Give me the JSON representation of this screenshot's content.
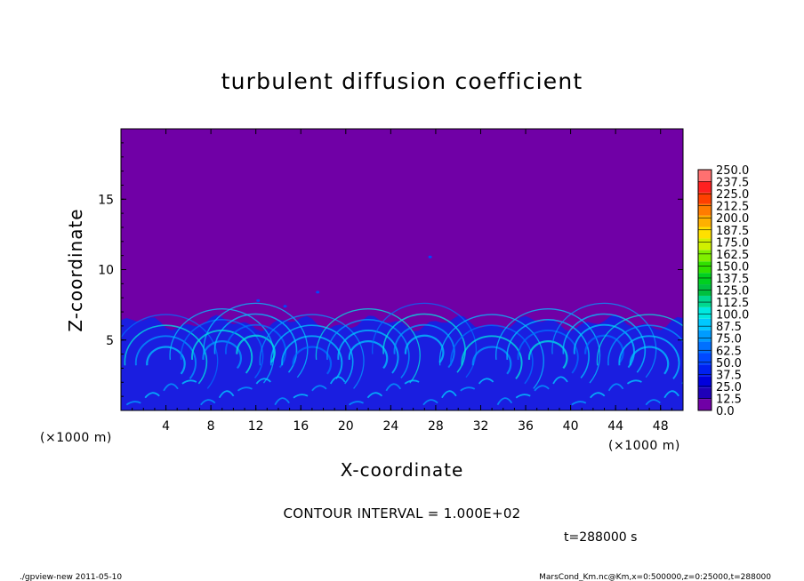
{
  "chart_data": {
    "type": "heatmap",
    "title": "turbulent diffusion coefficient",
    "xlabel": "X-coordinate",
    "ylabel": "Z-coordinate",
    "x_unit": "(×1000 m)",
    "y_unit": "(×1000 m)",
    "xlim": [
      0,
      50
    ],
    "ylim": [
      0,
      20
    ],
    "x_ticks": [
      4,
      8,
      12,
      16,
      20,
      24,
      28,
      32,
      36,
      40,
      44,
      48
    ],
    "x_tick_labels": [
      "4",
      "8",
      "12",
      "16",
      "20",
      "24",
      "28",
      "32",
      "36",
      "40",
      "44",
      "48"
    ],
    "y_ticks": [
      5,
      10,
      15
    ],
    "y_tick_labels": [
      "5",
      "10",
      "15"
    ],
    "mixed_layer_top_km": 6.5,
    "colorbar": {
      "levels": [
        "0.0",
        "12.5",
        "25.0",
        "37.5",
        "50.0",
        "62.5",
        "75.0",
        "87.5",
        "100.0",
        "112.5",
        "125.0",
        "137.5",
        "150.0",
        "162.5",
        "175.0",
        "187.5",
        "200.0",
        "212.5",
        "225.0",
        "237.5",
        "250.0"
      ],
      "colors": [
        "#7000a6",
        "#1f00b8",
        "#0000dd",
        "#0020f0",
        "#0048ff",
        "#0070ff",
        "#009cff",
        "#00c8ff",
        "#00e8e0",
        "#00d890",
        "#00c040",
        "#00d020",
        "#30e000",
        "#80f000",
        "#d0f000",
        "#ffe000",
        "#ffb000",
        "#ff7c00",
        "#ff4000",
        "#ff2020",
        "#ff7070"
      ]
    }
  },
  "labels": {
    "contour_interval": "CONTOUR INTERVAL = 1.000E+02",
    "time": "t=288000 s",
    "footer_left": "./gpview-new   2011-05-10",
    "footer_right": "MarsCond_Km.nc@Km,x=0:500000,z=0:25000,t=288000"
  },
  "colors": {
    "background_field": "#7000a6",
    "turbulent_layer": "#1a1ee0"
  }
}
